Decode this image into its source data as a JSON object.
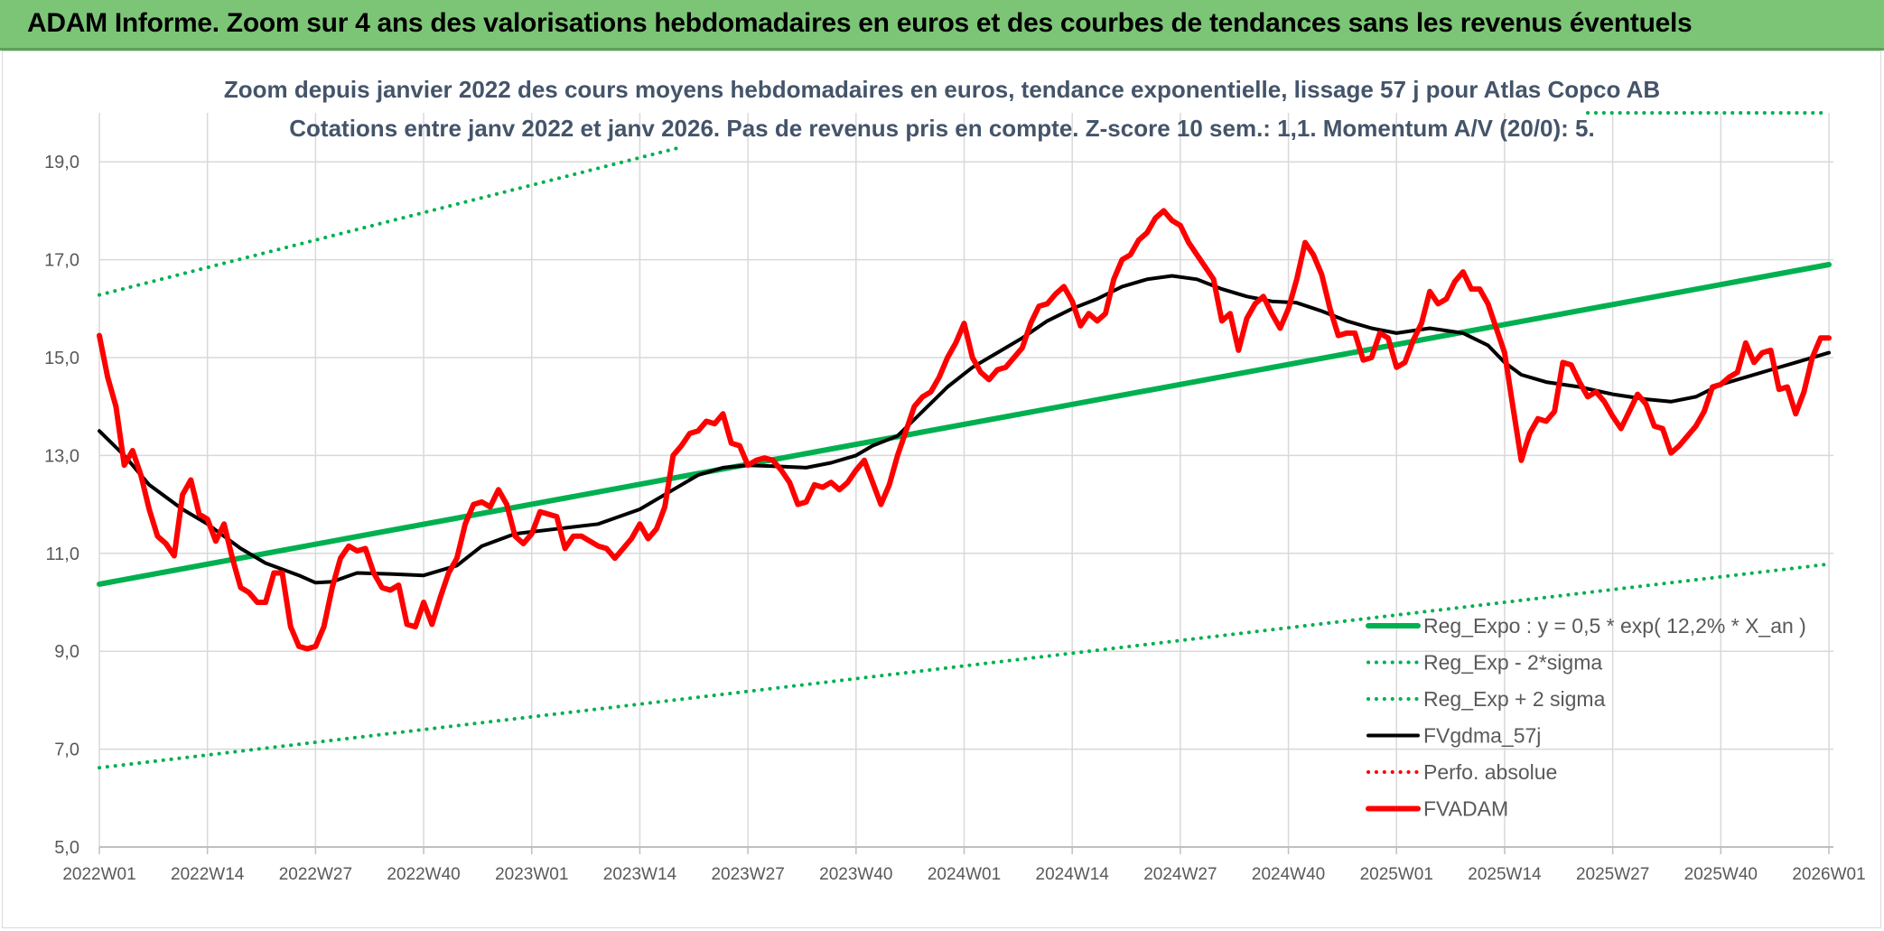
{
  "header": {
    "title": "ADAM Informe. Zoom sur 4 ans des valorisations hebdomadaires en euros et des courbes de tendances sans les revenus éventuels"
  },
  "chart_data": {
    "type": "line",
    "title": "Zoom depuis janvier 2022 des cours moyens hebdomadaires en euros, tendance exponentielle, lissage 57 j pour Atlas Copco AB",
    "subtitle": "Cotations entre janv 2022 et janv 2026. Pas de revenus pris en compte. Z-score 10 sem.: 1,1. Momentum A/V (20/0): 5.",
    "ylim": [
      5,
      20
    ],
    "y_ticks": [
      5,
      7,
      9,
      11,
      13,
      15,
      17,
      19
    ],
    "y_tick_labels": [
      "5,0",
      "7,0",
      "9,0",
      "11,0",
      "13,0",
      "15,0",
      "17,0",
      "19,0"
    ],
    "x_range": [
      0,
      208
    ],
    "x_ticks": [
      0,
      13,
      26,
      39,
      52,
      65,
      78,
      91,
      104,
      117,
      130,
      143,
      156,
      169,
      182,
      195,
      208
    ],
    "x_tick_labels": [
      "2022W01",
      "2022W14",
      "2022W27",
      "2022W40",
      "2023W01",
      "2023W14",
      "2023W27",
      "2023W40",
      "2024W01",
      "2024W14",
      "2024W27",
      "2024W40",
      "2025W01",
      "2025W14",
      "2025W27",
      "2025W40",
      "2026W01"
    ],
    "grid": true,
    "legend_position": "bottom-right",
    "series": [
      {
        "name": "Reg_Expo : y = 0,5 * exp( 12,2% *  X_an )",
        "color": "#00b050",
        "style": "solid",
        "width": 6,
        "points": [
          [
            0,
            10.37
          ],
          [
            208,
            16.9
          ]
        ]
      },
      {
        "name": "Reg_Exp - 2*sigma",
        "color": "#00b050",
        "style": "dotted",
        "width": 4,
        "points": [
          [
            0,
            6.62
          ],
          [
            208,
            10.78
          ]
        ]
      },
      {
        "name": "Reg_Exp + 2 sigma",
        "color": "#00b050",
        "style": "dotted",
        "width": 4,
        "segments": [
          [
            [
              0,
              16.28
            ],
            [
              70,
              19.3
            ]
          ],
          [
            [
              179,
              20.0
            ],
            [
              208,
              20.0
            ]
          ]
        ]
      },
      {
        "name": "FVgdma_57j",
        "color": "#000000",
        "style": "solid",
        "width": 4,
        "points": [
          [
            0,
            13.5
          ],
          [
            3,
            13.0
          ],
          [
            6,
            12.4
          ],
          [
            10,
            11.9
          ],
          [
            13,
            11.6
          ],
          [
            17,
            11.1
          ],
          [
            20,
            10.8
          ],
          [
            24,
            10.55
          ],
          [
            26,
            10.4
          ],
          [
            28,
            10.42
          ],
          [
            31,
            10.6
          ],
          [
            35,
            10.58
          ],
          [
            39,
            10.55
          ],
          [
            43,
            10.75
          ],
          [
            46,
            11.15
          ],
          [
            50,
            11.4
          ],
          [
            55,
            11.5
          ],
          [
            60,
            11.6
          ],
          [
            65,
            11.9
          ],
          [
            69,
            12.3
          ],
          [
            72,
            12.6
          ],
          [
            75,
            12.75
          ],
          [
            78,
            12.8
          ],
          [
            81,
            12.78
          ],
          [
            85,
            12.75
          ],
          [
            88,
            12.85
          ],
          [
            91,
            13.0
          ],
          [
            93,
            13.2
          ],
          [
            96,
            13.4
          ],
          [
            99,
            13.9
          ],
          [
            102,
            14.4
          ],
          [
            105,
            14.8
          ],
          [
            108,
            15.1
          ],
          [
            111,
            15.4
          ],
          [
            114,
            15.75
          ],
          [
            117,
            16.0
          ],
          [
            120,
            16.2
          ],
          [
            123,
            16.45
          ],
          [
            126,
            16.6
          ],
          [
            129,
            16.67
          ],
          [
            132,
            16.6
          ],
          [
            135,
            16.4
          ],
          [
            138,
            16.25
          ],
          [
            141,
            16.15
          ],
          [
            144,
            16.12
          ],
          [
            147,
            15.95
          ],
          [
            150,
            15.75
          ],
          [
            153,
            15.6
          ],
          [
            156,
            15.5
          ],
          [
            160,
            15.6
          ],
          [
            164,
            15.5
          ],
          [
            167,
            15.25
          ],
          [
            169,
            14.9
          ],
          [
            171,
            14.65
          ],
          [
            174,
            14.5
          ],
          [
            178,
            14.4
          ],
          [
            182,
            14.25
          ],
          [
            186,
            14.15
          ],
          [
            189,
            14.1
          ],
          [
            192,
            14.2
          ],
          [
            195,
            14.45
          ],
          [
            198,
            14.6
          ],
          [
            201,
            14.75
          ],
          [
            204,
            14.9
          ],
          [
            208,
            15.1
          ]
        ]
      },
      {
        "name": "Perfo. absolue",
        "color": "#ff0000",
        "style": "dotted",
        "width": 4,
        "points": []
      },
      {
        "name": "FVADAM",
        "color": "#ff0000",
        "style": "solid",
        "width": 6,
        "points": [
          [
            0,
            15.45
          ],
          [
            1,
            14.6
          ],
          [
            2,
            14.0
          ],
          [
            3,
            12.8
          ],
          [
            4,
            13.1
          ],
          [
            5,
            12.6
          ],
          [
            6,
            11.9
          ],
          [
            7,
            11.35
          ],
          [
            8,
            11.2
          ],
          [
            9,
            10.95
          ],
          [
            10,
            12.2
          ],
          [
            11,
            12.5
          ],
          [
            12,
            11.8
          ],
          [
            13,
            11.7
          ],
          [
            14,
            11.25
          ],
          [
            15,
            11.6
          ],
          [
            16,
            10.9
          ],
          [
            17,
            10.3
          ],
          [
            18,
            10.2
          ],
          [
            19,
            10.0
          ],
          [
            20,
            10.0
          ],
          [
            21,
            10.6
          ],
          [
            22,
            10.6
          ],
          [
            23,
            9.5
          ],
          [
            24,
            9.1
          ],
          [
            25,
            9.05
          ],
          [
            26,
            9.1
          ],
          [
            27,
            9.5
          ],
          [
            28,
            10.3
          ],
          [
            29,
            10.9
          ],
          [
            30,
            11.15
          ],
          [
            31,
            11.05
          ],
          [
            32,
            11.1
          ],
          [
            33,
            10.6
          ],
          [
            34,
            10.3
          ],
          [
            35,
            10.25
          ],
          [
            36,
            10.35
          ],
          [
            37,
            9.55
          ],
          [
            38,
            9.5
          ],
          [
            39,
            10.0
          ],
          [
            40,
            9.55
          ],
          [
            41,
            10.1
          ],
          [
            42,
            10.6
          ],
          [
            43,
            10.9
          ],
          [
            44,
            11.6
          ],
          [
            45,
            12.0
          ],
          [
            46,
            12.05
          ],
          [
            47,
            11.95
          ],
          [
            48,
            12.3
          ],
          [
            49,
            12.0
          ],
          [
            50,
            11.35
          ],
          [
            51,
            11.2
          ],
          [
            52,
            11.4
          ],
          [
            53,
            11.85
          ],
          [
            54,
            11.8
          ],
          [
            55,
            11.75
          ],
          [
            56,
            11.1
          ],
          [
            57,
            11.35
          ],
          [
            58,
            11.35
          ],
          [
            59,
            11.25
          ],
          [
            60,
            11.15
          ],
          [
            61,
            11.1
          ],
          [
            62,
            10.9
          ],
          [
            63,
            11.1
          ],
          [
            64,
            11.3
          ],
          [
            65,
            11.6
          ],
          [
            66,
            11.3
          ],
          [
            67,
            11.5
          ],
          [
            68,
            11.95
          ],
          [
            69,
            13.0
          ],
          [
            70,
            13.2
          ],
          [
            71,
            13.45
          ],
          [
            72,
            13.5
          ],
          [
            73,
            13.7
          ],
          [
            74,
            13.65
          ],
          [
            75,
            13.85
          ],
          [
            76,
            13.25
          ],
          [
            77,
            13.2
          ],
          [
            78,
            12.8
          ],
          [
            79,
            12.9
          ],
          [
            80,
            12.95
          ],
          [
            81,
            12.9
          ],
          [
            82,
            12.7
          ],
          [
            83,
            12.45
          ],
          [
            84,
            12.0
          ],
          [
            85,
            12.05
          ],
          [
            86,
            12.4
          ],
          [
            87,
            12.35
          ],
          [
            88,
            12.45
          ],
          [
            89,
            12.3
          ],
          [
            90,
            12.45
          ],
          [
            91,
            12.7
          ],
          [
            92,
            12.9
          ],
          [
            93,
            12.45
          ],
          [
            94,
            12.0
          ],
          [
            95,
            12.4
          ],
          [
            96,
            13.0
          ],
          [
            97,
            13.5
          ],
          [
            98,
            14.0
          ],
          [
            99,
            14.2
          ],
          [
            100,
            14.3
          ],
          [
            101,
            14.6
          ],
          [
            102,
            15.0
          ],
          [
            103,
            15.3
          ],
          [
            104,
            15.7
          ],
          [
            105,
            15.0
          ],
          [
            106,
            14.7
          ],
          [
            107,
            14.55
          ],
          [
            108,
            14.75
          ],
          [
            109,
            14.8
          ],
          [
            110,
            15.0
          ],
          [
            111,
            15.2
          ],
          [
            112,
            15.7
          ],
          [
            113,
            16.05
          ],
          [
            114,
            16.1
          ],
          [
            115,
            16.3
          ],
          [
            116,
            16.45
          ],
          [
            117,
            16.15
          ],
          [
            118,
            15.65
          ],
          [
            119,
            15.9
          ],
          [
            120,
            15.75
          ],
          [
            121,
            15.9
          ],
          [
            122,
            16.6
          ],
          [
            123,
            17.0
          ],
          [
            124,
            17.1
          ],
          [
            125,
            17.4
          ],
          [
            126,
            17.55
          ],
          [
            127,
            17.85
          ],
          [
            128,
            18.0
          ],
          [
            129,
            17.8
          ],
          [
            130,
            17.7
          ],
          [
            131,
            17.35
          ],
          [
            132,
            17.1
          ],
          [
            133,
            16.85
          ],
          [
            134,
            16.6
          ],
          [
            135,
            15.75
          ],
          [
            136,
            15.9
          ],
          [
            137,
            15.15
          ],
          [
            138,
            15.8
          ],
          [
            139,
            16.1
          ],
          [
            140,
            16.25
          ],
          [
            141,
            15.9
          ],
          [
            142,
            15.6
          ],
          [
            143,
            16.0
          ],
          [
            144,
            16.6
          ],
          [
            145,
            17.35
          ],
          [
            146,
            17.1
          ],
          [
            147,
            16.7
          ],
          [
            148,
            16.0
          ],
          [
            149,
            15.45
          ],
          [
            150,
            15.5
          ],
          [
            151,
            15.5
          ],
          [
            152,
            14.95
          ],
          [
            153,
            15.0
          ],
          [
            154,
            15.5
          ],
          [
            155,
            15.4
          ],
          [
            156,
            14.8
          ],
          [
            157,
            14.9
          ],
          [
            158,
            15.35
          ],
          [
            159,
            15.7
          ],
          [
            160,
            16.35
          ],
          [
            161,
            16.1
          ],
          [
            162,
            16.2
          ],
          [
            163,
            16.55
          ],
          [
            164,
            16.75
          ],
          [
            165,
            16.4
          ],
          [
            166,
            16.4
          ],
          [
            167,
            16.1
          ],
          [
            168,
            15.6
          ],
          [
            169,
            15.1
          ],
          [
            170,
            14.0
          ],
          [
            171,
            12.9
          ],
          [
            172,
            13.45
          ],
          [
            173,
            13.75
          ],
          [
            174,
            13.7
          ],
          [
            175,
            13.9
          ],
          [
            176,
            14.9
          ],
          [
            177,
            14.85
          ],
          [
            178,
            14.5
          ],
          [
            179,
            14.2
          ],
          [
            180,
            14.3
          ],
          [
            181,
            14.1
          ],
          [
            182,
            13.8
          ],
          [
            183,
            13.55
          ],
          [
            184,
            13.9
          ],
          [
            185,
            14.25
          ],
          [
            186,
            14.05
          ],
          [
            187,
            13.6
          ],
          [
            188,
            13.55
          ],
          [
            189,
            13.05
          ],
          [
            190,
            13.2
          ],
          [
            191,
            13.4
          ],
          [
            192,
            13.6
          ],
          [
            193,
            13.9
          ],
          [
            194,
            14.4
          ],
          [
            195,
            14.45
          ],
          [
            196,
            14.6
          ],
          [
            197,
            14.7
          ],
          [
            198,
            15.3
          ],
          [
            199,
            14.9
          ],
          [
            200,
            15.1
          ],
          [
            201,
            15.15
          ],
          [
            202,
            14.35
          ],
          [
            203,
            14.4
          ],
          [
            204,
            13.85
          ],
          [
            205,
            14.3
          ],
          [
            206,
            15.0
          ],
          [
            207,
            15.4
          ],
          [
            208,
            15.4
          ]
        ]
      }
    ]
  }
}
